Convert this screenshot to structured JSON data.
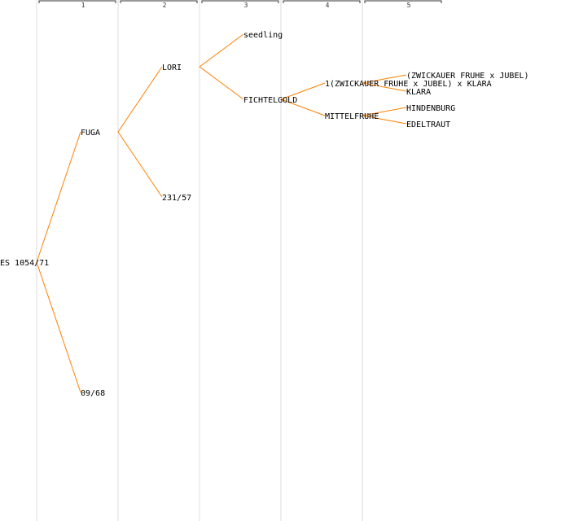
{
  "colors": {
    "edge": "#ff8000",
    "column_rule": "#eeeeee",
    "text": "#000000"
  },
  "generations": [
    "1",
    "2",
    "3",
    "4",
    "5"
  ],
  "nodes": {
    "root": "ES 1054/71",
    "fuga": "FUGA",
    "f09_68": "09/68",
    "lori": "LORI",
    "f231_57": "231/57",
    "seedling": "seedling",
    "fichtelgold": "FICHTELGOLD",
    "zj_klara": "1(ZWICKAUER FRUHE x JUBEL) x KLARA",
    "mittelfruhe": "MITTELFRUHE",
    "zwick_jubel": "(ZWICKAUER FRUHE x JUBEL)",
    "klara": "KLARA",
    "hindenburg": "HINDENBURG",
    "edeltraut": "EDELTRAUT"
  },
  "edges": [
    [
      "root",
      "fuga"
    ],
    [
      "root",
      "f09_68"
    ],
    [
      "fuga",
      "lori"
    ],
    [
      "fuga",
      "f231_57"
    ],
    [
      "lori",
      "seedling"
    ],
    [
      "lori",
      "fichtelgold"
    ],
    [
      "fichtelgold",
      "zj_klara"
    ],
    [
      "fichtelgold",
      "mittelfruhe"
    ],
    [
      "zj_klara",
      "zwick_jubel"
    ],
    [
      "zj_klara",
      "klara"
    ],
    [
      "mittelfruhe",
      "hindenburg"
    ],
    [
      "mittelfruhe",
      "edeltraut"
    ]
  ]
}
